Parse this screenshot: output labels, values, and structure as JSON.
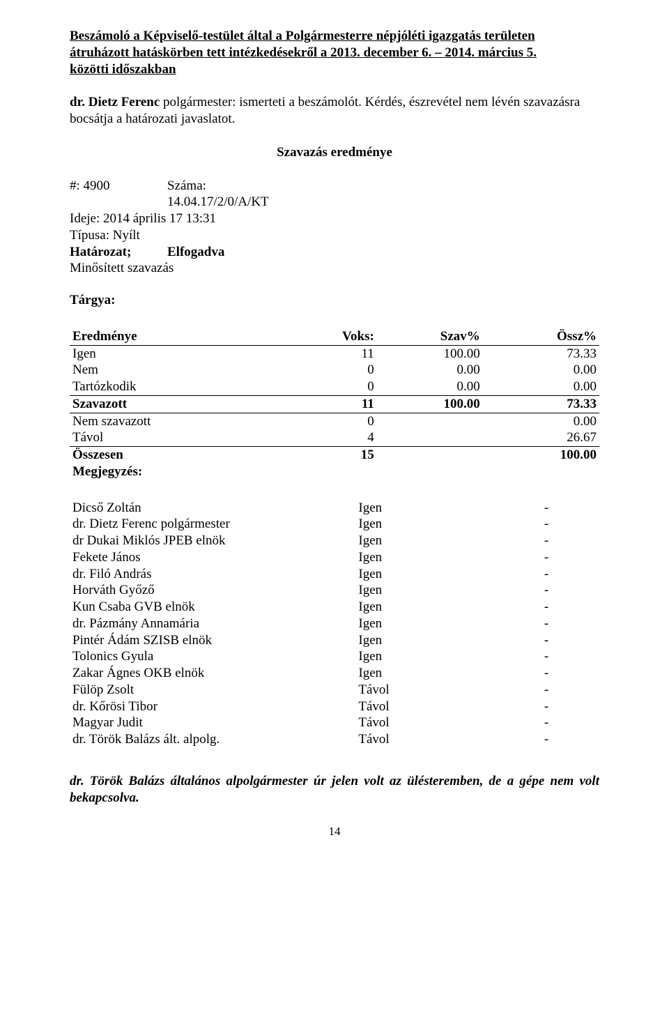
{
  "title": {
    "line1": "Beszámoló a Képviselő-testület által a Polgármesterre népjóléti igazgatás területen",
    "line2": "átruházott hatáskörben tett intézkedésekről a 2013. december 6. – 2014. március 5.",
    "line3": "közötti időszakban"
  },
  "intro": {
    "name_bold": "dr. Dietz Ferenc",
    "rest": " polgármester: ismerteti a beszámolót. Kérdés, észrevétel nem lévén szavazásra bocsátja a határozati javaslatot."
  },
  "vote_header": "Szavazás eredménye",
  "meta": {
    "hash_label": "#: 4900",
    "szama_label": "Száma: 14.04.17/2/0/A/KT",
    "ideje": "Ideje: 2014 április 17 13:31",
    "tipusa": "Típusa: Nyílt",
    "hatarozat_label": "Határozat;",
    "hatarozat_value": "Elfogadva",
    "minositett": "Minősített szavazás",
    "targya": "Tárgya:"
  },
  "results_header": {
    "c1": "Eredménye",
    "c2": "Voks:",
    "c3": "Szav%",
    "c4": "Össz%"
  },
  "results": {
    "igen": {
      "label": "Igen",
      "voks": "11",
      "szav": "100.00",
      "ossz": "73.33"
    },
    "nem": {
      "label": "Nem",
      "voks": "0",
      "szav": "0.00",
      "ossz": "0.00"
    },
    "tart": {
      "label": "Tartózkodik",
      "voks": "0",
      "szav": "0.00",
      "ossz": "0.00"
    },
    "szavazott": {
      "label": "Szavazott",
      "voks": "11",
      "szav": "100.00",
      "ossz": "73.33"
    },
    "nemszav": {
      "label": "Nem szavazott",
      "voks": "0",
      "ossz": "0.00"
    },
    "tavol": {
      "label": "Távol",
      "voks": "4",
      "ossz": "26.67"
    },
    "osszesen": {
      "label": "Összesen",
      "voks": "15",
      "ossz": "100.00"
    },
    "megjegyzes": {
      "label": "Megjegyzés:"
    }
  },
  "roll": [
    {
      "name": "Dicső Zoltán",
      "vote": "Igen",
      "mark": "-"
    },
    {
      "name": "dr. Dietz Ferenc polgármester",
      "vote": "Igen",
      "mark": "-"
    },
    {
      "name": "dr Dukai Miklós JPEB elnök",
      "vote": "Igen",
      "mark": "-"
    },
    {
      "name": "Fekete János",
      "vote": "Igen",
      "mark": "-"
    },
    {
      "name": "dr. Filó András",
      "vote": "Igen",
      "mark": "-"
    },
    {
      "name": "Horváth Győző",
      "vote": "Igen",
      "mark": "-"
    },
    {
      "name": "Kun Csaba GVB elnök",
      "vote": "Igen",
      "mark": "-"
    },
    {
      "name": "dr. Pázmány Annamária",
      "vote": "Igen",
      "mark": "-"
    },
    {
      "name": "Pintér Ádám SZISB elnök",
      "vote": "Igen",
      "mark": "-"
    },
    {
      "name": "Tolonics Gyula",
      "vote": "Igen",
      "mark": "-"
    },
    {
      "name": "Zakar Ágnes OKB elnök",
      "vote": "Igen",
      "mark": "-"
    },
    {
      "name": "Fülöp Zsolt",
      "vote": "Távol",
      "mark": "-"
    },
    {
      "name": "dr. Kőrösi Tibor",
      "vote": "Távol",
      "mark": "-"
    },
    {
      "name": "Magyar Judit",
      "vote": "Távol",
      "mark": "-"
    },
    {
      "name": "dr. Török Balázs ált. alpolg.",
      "vote": "Távol",
      "mark": "-"
    }
  ],
  "footnote": "dr. Török Balázs általános alpolgármester úr jelen volt az ülésteremben, de a gépe nem volt bekapcsolva.",
  "page_number": "14"
}
